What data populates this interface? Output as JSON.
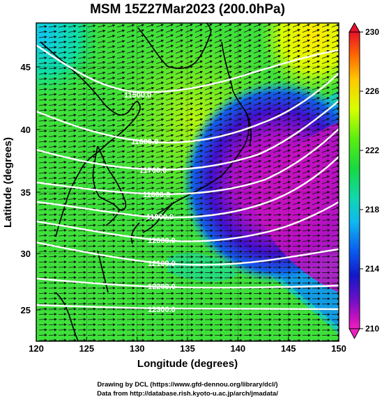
{
  "figure": {
    "title": "MSM 15Z27Mar2023 (200.0hPa)",
    "xlabel": "Longitude (degrees)",
    "ylabel": "Latitude  (degrees)",
    "footer_line1": "Drawing by DCL (https://www.gfd-dennou.org/library/dcl/)",
    "footer_line2": "Data from http://database.rish.kyoto-u.ac.jp/arch/jmadata/"
  },
  "axes": {
    "x_ticks": [
      "120",
      "125",
      "130",
      "135",
      "140",
      "145",
      "150"
    ],
    "y_ticks": [
      "25",
      "30",
      "35",
      "40",
      "45"
    ],
    "x_range": [
      120,
      150
    ],
    "y_range": [
      22.4,
      47.6
    ]
  },
  "colorbar": {
    "ticks": [
      "230",
      "226",
      "222",
      "218",
      "214",
      "210"
    ],
    "range": [
      210,
      230
    ],
    "colors_top_to_bottom": [
      "#e8102a",
      "#ff6a00",
      "#ffc800",
      "#d8ff00",
      "#5aee10",
      "#18d840",
      "#10d8b0",
      "#10b8f0",
      "#0a5aee",
      "#1218c8",
      "#6a10c8",
      "#c010c0",
      "#f020c0"
    ]
  },
  "contours": {
    "labels": [
      "11500.0",
      "11600.0",
      "11700.0",
      "11800.0",
      "11900.0",
      "12000.0",
      "12100.0",
      "12200.0",
      "12300.0"
    ]
  },
  "layers": {
    "field": "temperature shading (K)",
    "lines": "geopotential height contours",
    "arrows": "wind vectors"
  }
}
